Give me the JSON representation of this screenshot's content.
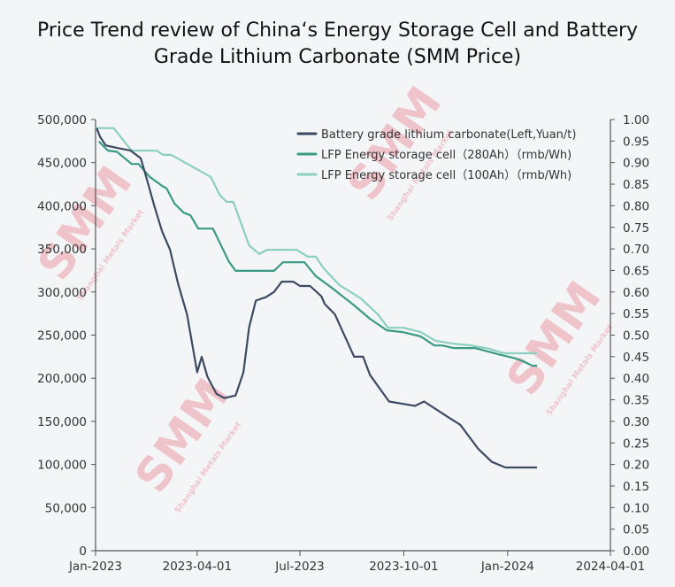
{
  "chart_data": {
    "type": "line",
    "title_line1": "Price Trend review of China‘s Energy Storage Cell and Battery",
    "title_line2": "Grade Lithium Carbonate (SMM Price)",
    "watermark": "SMM",
    "watermark_sub": "Shanghai Metals Market",
    "x_ticks": [
      "Jan-2023",
      "2023-04-01",
      "Jul-2023",
      "2023-10-01",
      "Jan-2024",
      "2024-04-01"
    ],
    "x_tick_dates": [
      "2023-01-01",
      "2023-04-01",
      "2023-07-01",
      "2023-10-01",
      "2024-01-01",
      "2024-04-01"
    ],
    "xlim": [
      "2023-01-01",
      "2024-04-01"
    ],
    "y_left": {
      "ylim": [
        0,
        500000
      ],
      "ticks": [
        "0",
        "50,000",
        "100,000",
        "150,000",
        "200,000",
        "250,000",
        "300,000",
        "350,000",
        "400,000",
        "450,000",
        "500,000"
      ]
    },
    "y_right": {
      "ylim": [
        0,
        1.0
      ],
      "ticks": [
        "0.00",
        "0.05",
        "0.10",
        "0.15",
        "0.20",
        "0.25",
        "0.30",
        "0.35",
        "0.40",
        "0.45",
        "0.50",
        "0.55",
        "0.60",
        "0.65",
        "0.70",
        "0.75",
        "0.80",
        "0.85",
        "0.90",
        "0.95",
        "1.00"
      ]
    },
    "legend_placement": "top-right",
    "grid": false,
    "series": [
      {
        "name": "Battery grade lithium carbonate(Left,Yuan/t)",
        "axis": "left",
        "color": "#3d4a63",
        "points": [
          [
            "2023-01-02",
            490000
          ],
          [
            "2023-01-05",
            480000
          ],
          [
            "2023-01-10",
            470000
          ],
          [
            "2023-01-20",
            467000
          ],
          [
            "2023-02-01",
            464000
          ],
          [
            "2023-02-10",
            455000
          ],
          [
            "2023-02-15",
            433000
          ],
          [
            "2023-02-22",
            400000
          ],
          [
            "2023-03-01",
            370000
          ],
          [
            "2023-03-08",
            349000
          ],
          [
            "2023-03-15",
            310000
          ],
          [
            "2023-03-23",
            274000
          ],
          [
            "2023-04-01",
            207000
          ],
          [
            "2023-04-05",
            225000
          ],
          [
            "2023-04-10",
            202000
          ],
          [
            "2023-04-18",
            182000
          ],
          [
            "2023-04-25",
            177000
          ],
          [
            "2023-05-05",
            180000
          ],
          [
            "2023-05-12",
            207000
          ],
          [
            "2023-05-17",
            259000
          ],
          [
            "2023-05-23",
            290000
          ],
          [
            "2023-06-01",
            294000
          ],
          [
            "2023-06-08",
            300000
          ],
          [
            "2023-06-15",
            312000
          ],
          [
            "2023-06-25",
            312000
          ],
          [
            "2023-07-01",
            307000
          ],
          [
            "2023-07-10",
            307000
          ],
          [
            "2023-07-20",
            295000
          ],
          [
            "2023-07-23",
            286000
          ],
          [
            "2023-08-01",
            274000
          ],
          [
            "2023-08-10",
            248000
          ],
          [
            "2023-08-18",
            225000
          ],
          [
            "2023-08-26",
            225000
          ],
          [
            "2023-09-01",
            204000
          ],
          [
            "2023-09-18",
            173000
          ],
          [
            "2023-10-11",
            168000
          ],
          [
            "2023-10-19",
            173000
          ],
          [
            "2023-11-08",
            156000
          ],
          [
            "2023-11-20",
            146000
          ],
          [
            "2023-12-06",
            118000
          ],
          [
            "2023-12-18",
            103000
          ],
          [
            "2023-12-30",
            96500
          ],
          [
            "2024-01-11",
            96500
          ],
          [
            "2024-01-27",
            96500
          ]
        ]
      },
      {
        "name": "LFP Energy storage cell（280Ah）（rmb/Wh)",
        "axis": "right",
        "color": "#3a9a83",
        "points": [
          [
            "2023-01-04",
            0.949
          ],
          [
            "2023-01-12",
            0.928
          ],
          [
            "2023-01-20",
            0.925
          ],
          [
            "2023-02-02",
            0.897
          ],
          [
            "2023-02-08",
            0.897
          ],
          [
            "2023-02-18",
            0.867
          ],
          [
            "2023-03-01",
            0.846
          ],
          [
            "2023-03-05",
            0.84
          ],
          [
            "2023-03-12",
            0.805
          ],
          [
            "2023-03-20",
            0.784
          ],
          [
            "2023-03-26",
            0.778
          ],
          [
            "2023-04-02",
            0.747
          ],
          [
            "2023-04-15",
            0.747
          ],
          [
            "2023-04-29",
            0.671
          ],
          [
            "2023-05-05",
            0.649
          ],
          [
            "2023-06-08",
            0.649
          ],
          [
            "2023-06-16",
            0.669
          ],
          [
            "2023-07-05",
            0.669
          ],
          [
            "2023-07-15",
            0.637
          ],
          [
            "2023-07-29",
            0.61
          ],
          [
            "2023-08-18",
            0.569
          ],
          [
            "2023-09-01",
            0.538
          ],
          [
            "2023-09-16",
            0.511
          ],
          [
            "2023-09-30",
            0.507
          ],
          [
            "2023-10-16",
            0.497
          ],
          [
            "2023-10-28",
            0.476
          ],
          [
            "2023-11-04",
            0.476
          ],
          [
            "2023-11-14",
            0.47
          ],
          [
            "2023-12-03",
            0.47
          ],
          [
            "2023-12-23",
            0.456
          ],
          [
            "2024-01-08",
            0.446
          ],
          [
            "2024-01-15",
            0.439
          ],
          [
            "2024-01-23",
            0.429
          ],
          [
            "2024-01-27",
            0.429
          ]
        ]
      },
      {
        "name": "LFP Energy storage cell（100Ah）（rmb/Wh)",
        "axis": "right",
        "color": "#8ccfc0",
        "points": [
          [
            "2023-01-01",
            0.98
          ],
          [
            "2023-01-17",
            0.98
          ],
          [
            "2023-02-02",
            0.928
          ],
          [
            "2023-02-24",
            0.928
          ],
          [
            "2023-03-02",
            0.918
          ],
          [
            "2023-03-09",
            0.918
          ],
          [
            "2023-04-13",
            0.867
          ],
          [
            "2023-04-21",
            0.825
          ],
          [
            "2023-04-27",
            0.809
          ],
          [
            "2023-05-03",
            0.809
          ],
          [
            "2023-05-17",
            0.708
          ],
          [
            "2023-05-26",
            0.688
          ],
          [
            "2023-06-02",
            0.698
          ],
          [
            "2023-06-28",
            0.698
          ],
          [
            "2023-07-08",
            0.682
          ],
          [
            "2023-07-15",
            0.682
          ],
          [
            "2023-07-22",
            0.655
          ],
          [
            "2023-08-05",
            0.616
          ],
          [
            "2023-08-24",
            0.585
          ],
          [
            "2023-09-08",
            0.548
          ],
          [
            "2023-09-17",
            0.517
          ],
          [
            "2023-10-01",
            0.517
          ],
          [
            "2023-10-16",
            0.507
          ],
          [
            "2023-10-29",
            0.487
          ],
          [
            "2023-11-14",
            0.48
          ],
          [
            "2023-11-30",
            0.476
          ],
          [
            "2023-12-16",
            0.468
          ],
          [
            "2023-12-26",
            0.46
          ],
          [
            "2023-12-30",
            0.458
          ],
          [
            "2024-01-27",
            0.458
          ]
        ]
      }
    ]
  }
}
